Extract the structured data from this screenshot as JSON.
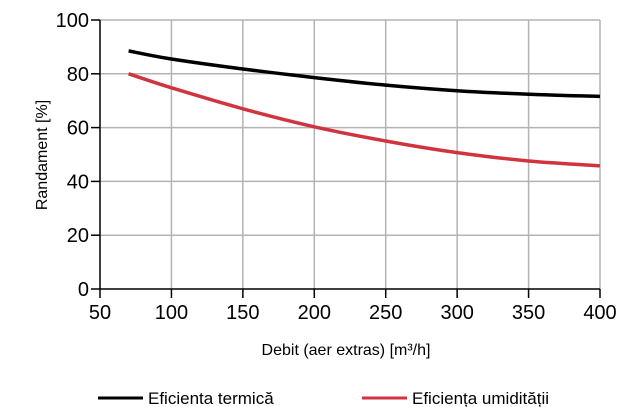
{
  "chart_data": {
    "type": "line",
    "title": "",
    "xlabel": "Debit (aer extras) [m³/h]",
    "ylabel": "Randament [%]",
    "xlim": [
      50,
      400
    ],
    "ylim": [
      0,
      100
    ],
    "xticks": [
      50,
      100,
      150,
      200,
      250,
      300,
      350,
      400
    ],
    "yticks": [
      0,
      20,
      40,
      60,
      80,
      100
    ],
    "xtick_labels": [
      "50",
      "100",
      "150",
      "200",
      "250",
      "300",
      "350",
      "400"
    ],
    "ytick_labels": [
      "0",
      "20",
      "40",
      "60",
      "80",
      "100"
    ],
    "grid": true,
    "legend_position": "bottom",
    "series": [
      {
        "name": "Eficienta termică",
        "color": "#000000",
        "x": [
          70,
          100,
          150,
          200,
          250,
          300,
          350,
          400
        ],
        "y": [
          88.5,
          85.5,
          81.8,
          78.6,
          75.8,
          73.7,
          72.4,
          71.6
        ]
      },
      {
        "name": "Eficiența umidității",
        "color": "#d0353f",
        "x": [
          70,
          100,
          150,
          200,
          250,
          300,
          350,
          400
        ],
        "y": [
          80,
          74.8,
          67,
          60.3,
          55,
          50.7,
          47.6,
          45.8
        ]
      }
    ]
  }
}
